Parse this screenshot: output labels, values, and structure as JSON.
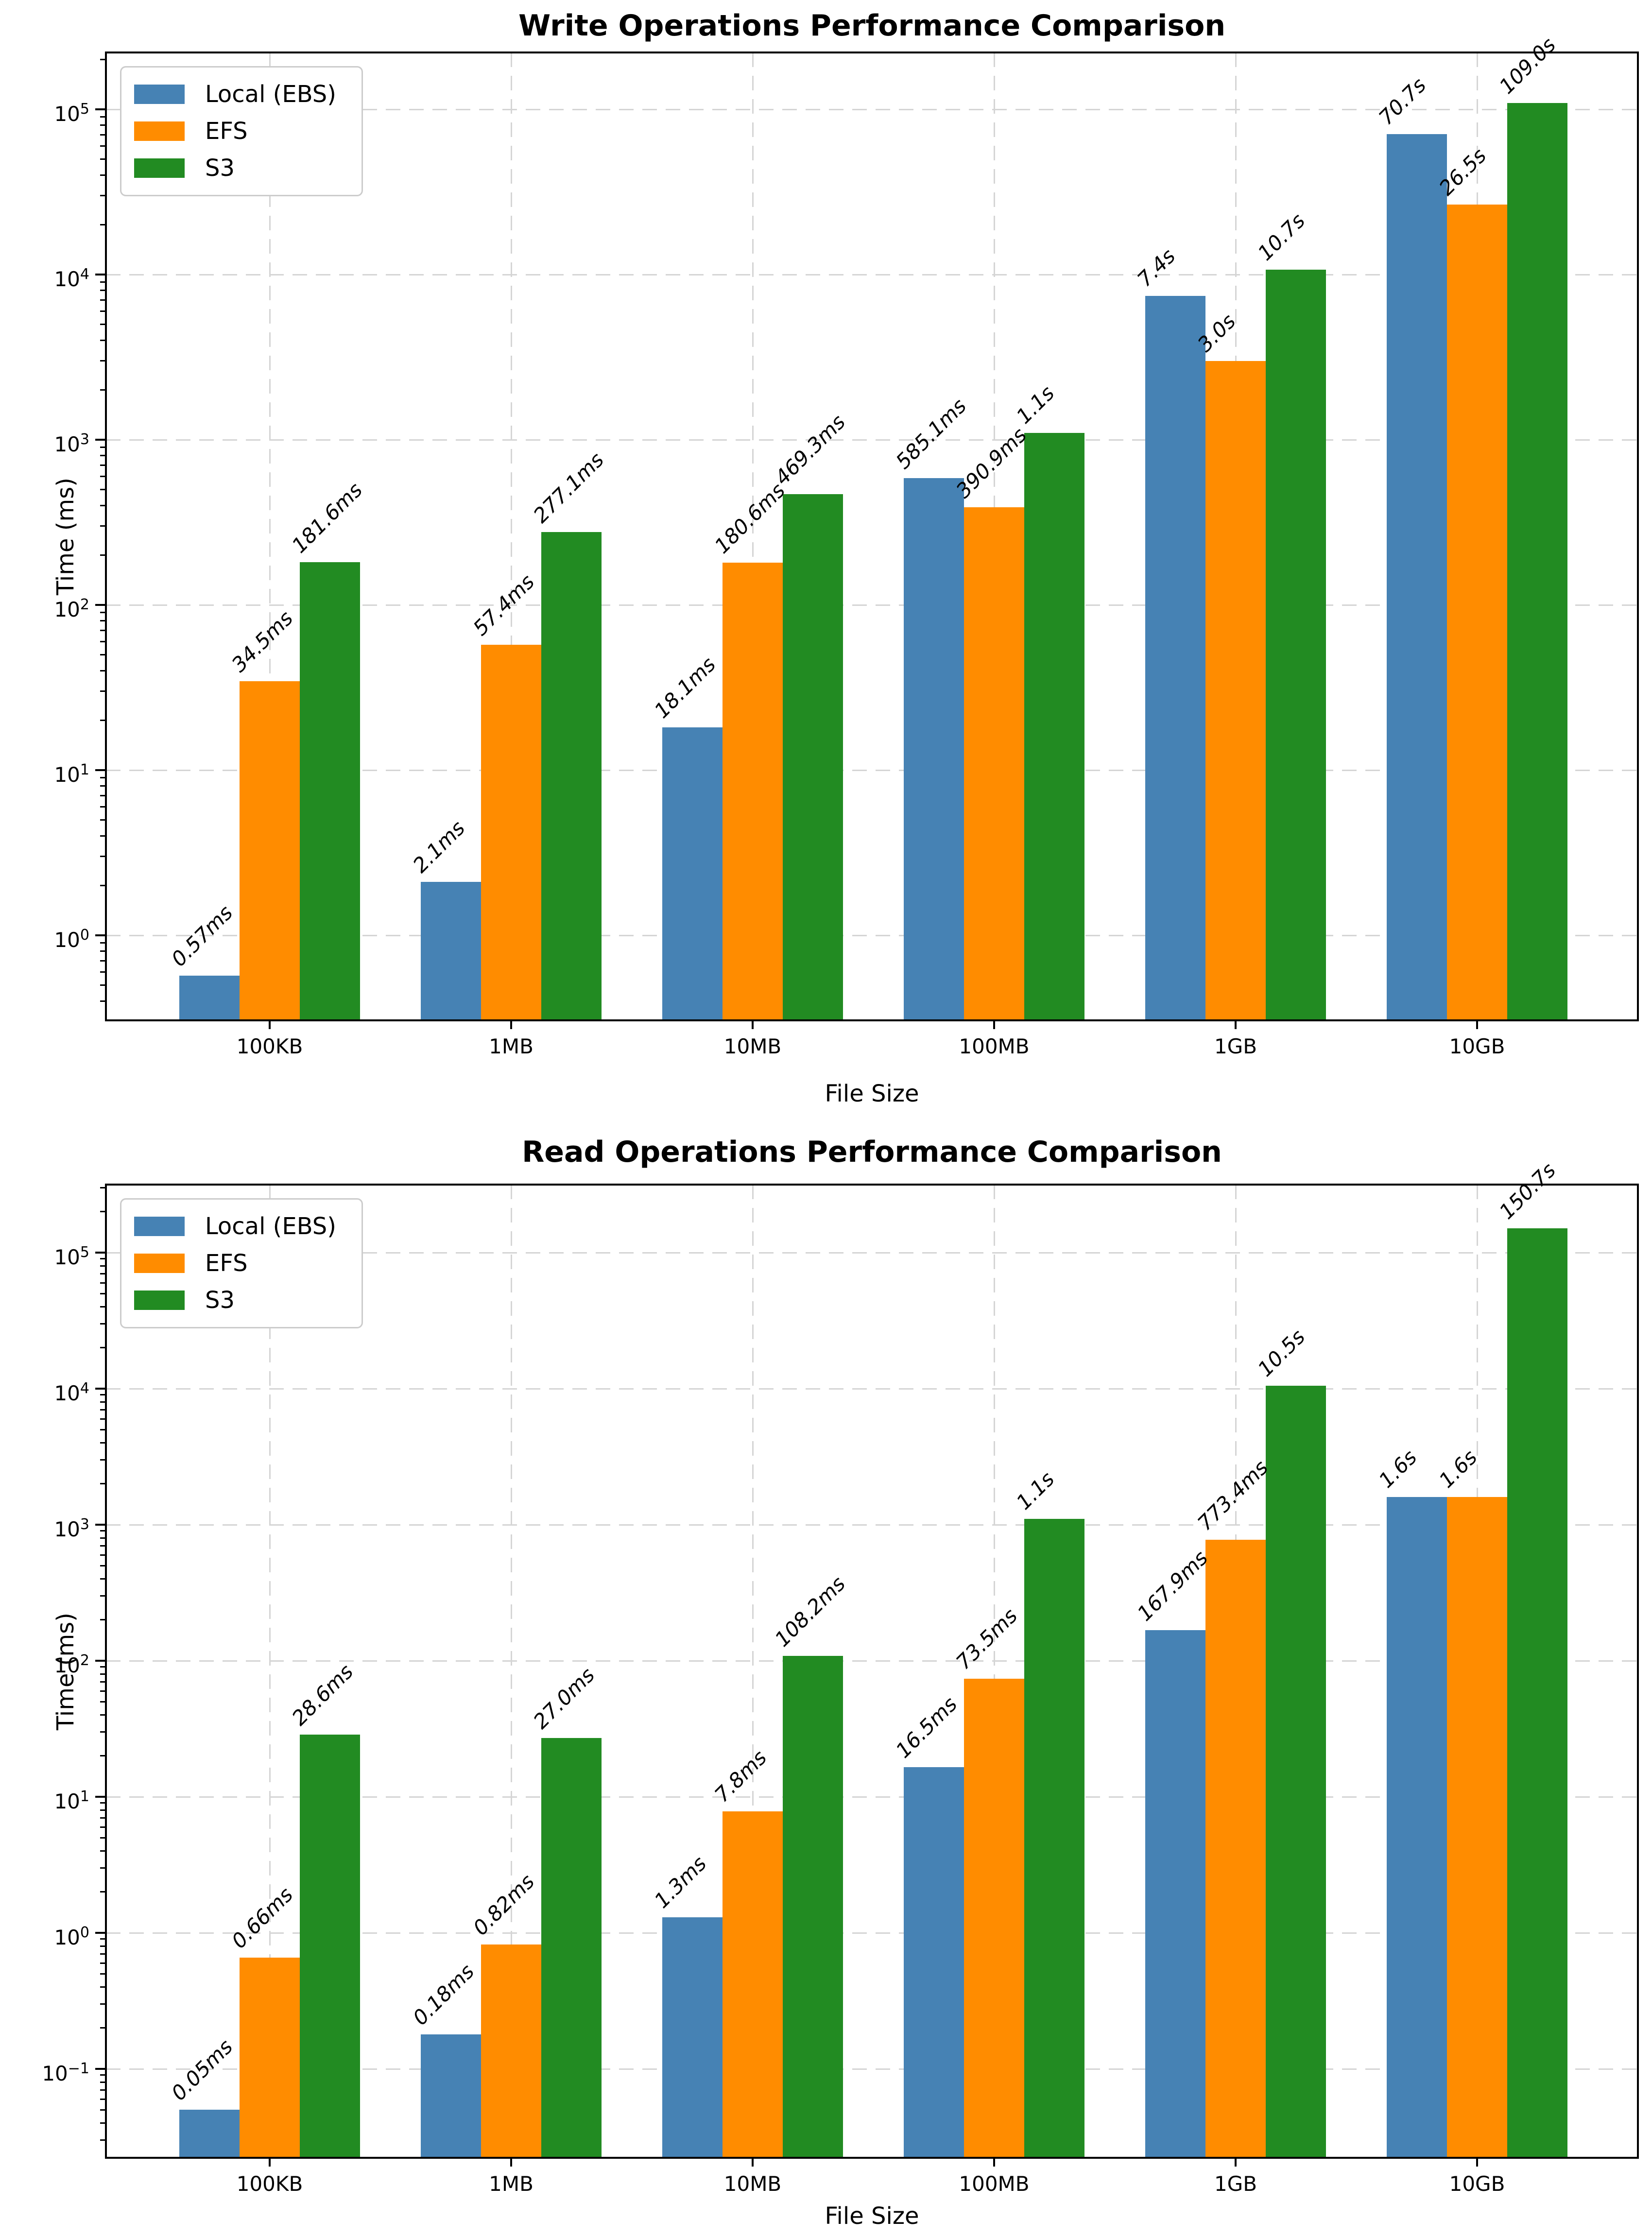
{
  "chart_data": [
    {
      "type": "bar",
      "title": "Write Operations Performance Comparison",
      "xlabel": "File Size",
      "ylabel": "Time (ms)",
      "yscale": "log",
      "grid": true,
      "legend_position": "upper left",
      "categories": [
        "100KB",
        "1MB",
        "10MB",
        "100MB",
        "1GB",
        "10GB"
      ],
      "y_tick_exponents": [
        0,
        1,
        2,
        3,
        4,
        5
      ],
      "ylim": [
        0.3,
        220000
      ],
      "series": [
        {
          "name": "Local (EBS)",
          "color": "#4682B4",
          "values": [
            0.57,
            2.1,
            18.1,
            585.1,
            7400,
            70700
          ],
          "value_labels": [
            "0.57ms",
            "2.1ms",
            "18.1ms",
            "585.1ms",
            "7.4s",
            "70.7s"
          ]
        },
        {
          "name": "EFS",
          "color": "#FF8C00",
          "values": [
            34.5,
            57.4,
            180.6,
            390.9,
            3000,
            26500
          ],
          "value_labels": [
            "34.5ms",
            "57.4ms",
            "180.6ms",
            "390.9ms",
            "3.0s",
            "26.5s"
          ]
        },
        {
          "name": "S3",
          "color": "#228B22",
          "values": [
            181.6,
            277.1,
            469.3,
            1100,
            10700,
            109000
          ],
          "value_labels": [
            "181.6ms",
            "277.1ms",
            "469.3ms",
            "1.1s",
            "10.7s",
            "109.0s"
          ]
        }
      ]
    },
    {
      "type": "bar",
      "title": "Read Operations Performance Comparison",
      "xlabel": "File Size",
      "ylabel": "Time (ms)",
      "yscale": "log",
      "grid": true,
      "legend_position": "upper left",
      "categories": [
        "100KB",
        "1MB",
        "10MB",
        "100MB",
        "1GB",
        "10GB"
      ],
      "y_tick_exponents": [
        -1,
        0,
        1,
        2,
        3,
        4,
        5
      ],
      "ylim": [
        0.022,
        300000
      ],
      "series": [
        {
          "name": "Local (EBS)",
          "color": "#4682B4",
          "values": [
            0.05,
            0.18,
            1.3,
            16.5,
            167.9,
            1600
          ],
          "value_labels": [
            "0.05ms",
            "0.18ms",
            "1.3ms",
            "16.5ms",
            "167.9ms",
            "1.6s"
          ]
        },
        {
          "name": "EFS",
          "color": "#FF8C00",
          "values": [
            0.66,
            0.82,
            7.8,
            73.5,
            773.4,
            1600
          ],
          "value_labels": [
            "0.66ms",
            "0.82ms",
            "7.8ms",
            "73.5ms",
            "773.4ms",
            "1.6s"
          ]
        },
        {
          "name": "S3",
          "color": "#228B22",
          "values": [
            28.6,
            27.0,
            108.2,
            1100,
            10500,
            150700
          ],
          "value_labels": [
            "28.6ms",
            "27.0ms",
            "108.2ms",
            "1.1s",
            "10.5s",
            "150.7s"
          ]
        }
      ]
    }
  ]
}
